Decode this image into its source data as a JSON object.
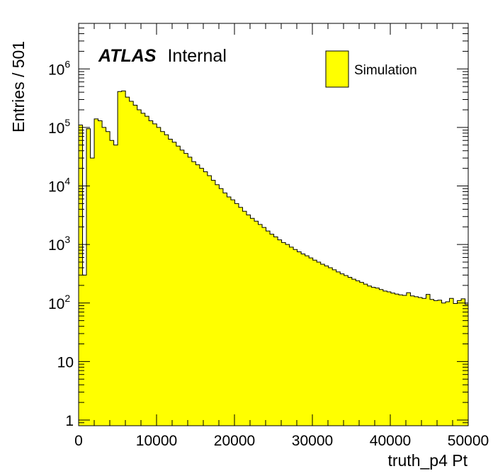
{
  "chart_data": {
    "type": "histogram",
    "xlabel": "truth_p4 Pt",
    "ylabel": "Entries / 501",
    "xlim": [
      0,
      50000
    ],
    "ylim": [
      0.8,
      6000000
    ],
    "log_y": true,
    "grid": false,
    "legend_position": "top-right",
    "fill_color": "#ffff00",
    "bin_width": 501,
    "label": {
      "bold": "ATLAS",
      "text": "Internal"
    },
    "legend": [
      {
        "name": "Simulation",
        "color": "#ffff00"
      }
    ],
    "x_ticks": [
      {
        "value": 0,
        "label": "0"
      },
      {
        "value": 10000,
        "label": "10000"
      },
      {
        "value": 20000,
        "label": "20000"
      },
      {
        "value": 30000,
        "label": "30000"
      },
      {
        "value": 40000,
        "label": "40000"
      },
      {
        "value": 50000,
        "label": "50000"
      }
    ],
    "y_ticks": [
      {
        "value": 1,
        "base": "1",
        "exp": ""
      },
      {
        "value": 10,
        "base": "10",
        "exp": ""
      },
      {
        "value": 100,
        "base": "10",
        "exp": "2"
      },
      {
        "value": 1000,
        "base": "10",
        "exp": "3"
      },
      {
        "value": 10000,
        "base": "10",
        "exp": "4"
      },
      {
        "value": 100000,
        "base": "10",
        "exp": "5"
      },
      {
        "value": 1000000,
        "base": "10",
        "exp": "6"
      }
    ],
    "bins_x_start": [
      0,
      501,
      1002,
      1503,
      2004,
      2505,
      3006,
      3507,
      4008,
      4509,
      5010,
      5511,
      6012,
      6513,
      7014,
      7515,
      8016,
      8517,
      9018,
      9519,
      10020,
      10521,
      11022,
      11523,
      12024,
      12525,
      13026,
      13527,
      14028,
      14529,
      15030,
      15531,
      16032,
      16533,
      17034,
      17535,
      18036,
      18537,
      19038,
      19539,
      20040,
      20541,
      21042,
      21543,
      22044,
      22545,
      23046,
      23547,
      24048,
      24549,
      25050,
      25551,
      26052,
      26553,
      27054,
      27555,
      28056,
      28557,
      29058,
      29559,
      30060,
      30561,
      31062,
      31563,
      32064,
      32565,
      33066,
      33567,
      34068,
      34569,
      35070,
      35571,
      36072,
      36573,
      37074,
      37575,
      38076,
      38577,
      39078,
      39579,
      40080,
      40581,
      41082,
      41583,
      42084,
      42585,
      43086,
      43587,
      44088,
      44589,
      45090,
      45591,
      46092,
      46593,
      47094,
      47595,
      48096,
      48597,
      49098,
      49599
    ],
    "counts": [
      110000,
      300,
      95000,
      30000,
      140000,
      130000,
      100000,
      85000,
      60000,
      50000,
      410000,
      420000,
      330000,
      280000,
      240000,
      200000,
      175000,
      155000,
      130000,
      115000,
      100000,
      85000,
      75000,
      63000,
      56000,
      48000,
      41000,
      36000,
      31000,
      26000,
      23000,
      20000,
      17500,
      15000,
      12500,
      10500,
      9000,
      7600,
      6500,
      5800,
      5000,
      4300,
      3700,
      3200,
      2800,
      2500,
      2200,
      1950,
      1700,
      1500,
      1350,
      1200,
      1080,
      1000,
      900,
      820,
      750,
      690,
      640,
      590,
      540,
      500,
      460,
      430,
      400,
      370,
      340,
      315,
      295,
      275,
      255,
      240,
      225,
      210,
      195,
      185,
      180,
      170,
      160,
      155,
      148,
      142,
      138,
      135,
      150,
      132,
      128,
      124,
      120,
      140,
      115,
      110,
      112,
      100,
      105,
      120,
      98,
      110,
      118,
      95
    ]
  }
}
